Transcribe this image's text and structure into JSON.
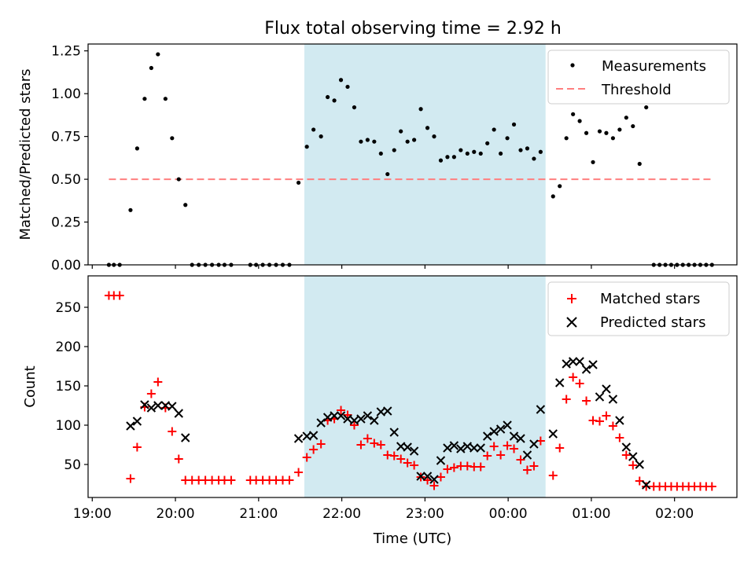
{
  "title": "Flux total observing time = 2.92 h",
  "colors": {
    "shade": "#add8e6",
    "measurement": "#000000",
    "threshold": "#ff7f7f",
    "matched": "#ff0000",
    "predicted": "#000000"
  },
  "chart_data": [
    {
      "type": "scatter",
      "panel": "top",
      "ylabel": "Matched/Predicted stars",
      "ylim": [
        0,
        1.29
      ],
      "yticks": [
        0.0,
        0.25,
        0.5,
        0.75,
        1.0,
        1.25
      ],
      "ytick_labels": [
        "0.00",
        "0.25",
        "0.50",
        "0.75",
        "1.00",
        "1.25"
      ],
      "xlim": [
        18.95,
        26.75
      ],
      "shaded_span": [
        21.55,
        24.45
      ],
      "legend": {
        "position": "top-right",
        "entries": [
          "Measurements",
          "Threshold"
        ]
      },
      "series": [
        {
          "name": "Measurements",
          "marker": "dot",
          "points": [
            [
              19.2,
              0
            ],
            [
              19.26,
              0
            ],
            [
              19.33,
              0
            ],
            [
              19.46,
              0.32
            ],
            [
              19.54,
              0.68
            ],
            [
              19.63,
              0.97
            ],
            [
              19.71,
              1.15
            ],
            [
              19.79,
              1.23
            ],
            [
              19.88,
              0.97
            ],
            [
              19.96,
              0.74
            ],
            [
              20.04,
              0.5
            ],
            [
              20.12,
              0.35
            ],
            [
              20.2,
              0
            ],
            [
              20.28,
              0
            ],
            [
              20.36,
              0
            ],
            [
              20.44,
              0
            ],
            [
              20.52,
              0
            ],
            [
              20.59,
              0
            ],
            [
              20.67,
              0
            ],
            [
              20.9,
              0
            ],
            [
              20.97,
              0
            ],
            [
              21.05,
              0
            ],
            [
              21.13,
              0
            ],
            [
              21.21,
              0
            ],
            [
              21.29,
              0
            ],
            [
              21.37,
              0
            ],
            [
              21.48,
              0.48
            ],
            [
              21.58,
              0.69
            ],
            [
              21.66,
              0.79
            ],
            [
              21.75,
              0.75
            ],
            [
              21.83,
              0.98
            ],
            [
              21.91,
              0.96
            ],
            [
              21.99,
              1.08
            ],
            [
              22.07,
              1.04
            ],
            [
              22.15,
              0.92
            ],
            [
              22.23,
              0.72
            ],
            [
              22.31,
              0.73
            ],
            [
              22.39,
              0.72
            ],
            [
              22.47,
              0.65
            ],
            [
              22.55,
              0.53
            ],
            [
              22.63,
              0.67
            ],
            [
              22.71,
              0.78
            ],
            [
              22.79,
              0.72
            ],
            [
              22.87,
              0.73
            ],
            [
              22.95,
              0.91
            ],
            [
              23.03,
              0.8
            ],
            [
              23.11,
              0.75
            ],
            [
              23.19,
              0.61
            ],
            [
              23.27,
              0.63
            ],
            [
              23.35,
              0.63
            ],
            [
              23.43,
              0.67
            ],
            [
              23.51,
              0.65
            ],
            [
              23.59,
              0.66
            ],
            [
              23.67,
              0.65
            ],
            [
              23.75,
              0.71
            ],
            [
              23.83,
              0.79
            ],
            [
              23.91,
              0.65
            ],
            [
              23.99,
              0.74
            ],
            [
              24.07,
              0.82
            ],
            [
              24.15,
              0.67
            ],
            [
              24.23,
              0.68
            ],
            [
              24.31,
              0.62
            ],
            [
              24.39,
              0.66
            ],
            [
              24.54,
              0.4
            ],
            [
              24.62,
              0.46
            ],
            [
              24.7,
              0.74
            ],
            [
              24.78,
              0.88
            ],
            [
              24.86,
              0.84
            ],
            [
              24.94,
              0.77
            ],
            [
              25.02,
              0.6
            ],
            [
              25.1,
              0.78
            ],
            [
              25.18,
              0.77
            ],
            [
              25.26,
              0.74
            ],
            [
              25.34,
              0.79
            ],
            [
              25.42,
              0.86
            ],
            [
              25.5,
              0.81
            ],
            [
              25.58,
              0.59
            ],
            [
              25.66,
              0.92
            ],
            [
              25.75,
              0
            ],
            [
              25.82,
              0
            ],
            [
              25.89,
              0
            ],
            [
              25.96,
              0
            ],
            [
              26.03,
              0
            ],
            [
              26.1,
              0
            ],
            [
              26.17,
              0
            ],
            [
              26.24,
              0
            ],
            [
              26.31,
              0
            ],
            [
              26.38,
              0
            ],
            [
              26.45,
              0
            ]
          ]
        },
        {
          "name": "Threshold",
          "marker": "dashed-line",
          "points": [
            [
              19.2,
              0.5
            ],
            [
              26.45,
              0.5
            ]
          ]
        }
      ]
    },
    {
      "type": "scatter",
      "panel": "bottom",
      "xlabel": "Time (UTC)",
      "ylabel": "Count",
      "ylim": [
        8,
        290
      ],
      "yticks": [
        50,
        100,
        150,
        200,
        250
      ],
      "xlim": [
        18.95,
        26.75
      ],
      "xticks": [
        19,
        20,
        21,
        22,
        23,
        24,
        25,
        26
      ],
      "xtick_labels": [
        "19:00",
        "20:00",
        "21:00",
        "22:00",
        "23:00",
        "00:00",
        "01:00",
        "02:00"
      ],
      "shaded_span": [
        21.55,
        24.45
      ],
      "legend": {
        "position": "top-right",
        "entries": [
          "Matched stars",
          "Predicted stars"
        ]
      },
      "series": [
        {
          "name": "Matched stars",
          "marker": "plus",
          "points": [
            [
              19.2,
              265
            ],
            [
              19.26,
              265
            ],
            [
              19.33,
              265
            ],
            [
              19.46,
              32
            ],
            [
              19.54,
              72
            ],
            [
              19.63,
              123
            ],
            [
              19.71,
              140
            ],
            [
              19.79,
              155
            ],
            [
              19.88,
              122
            ],
            [
              19.96,
              92
            ],
            [
              20.04,
              57
            ],
            [
              20.12,
              30
            ],
            [
              20.2,
              30
            ],
            [
              20.28,
              30
            ],
            [
              20.36,
              30
            ],
            [
              20.44,
              30
            ],
            [
              20.52,
              30
            ],
            [
              20.59,
              30
            ],
            [
              20.67,
              30
            ],
            [
              20.9,
              30
            ],
            [
              20.97,
              30
            ],
            [
              21.05,
              30
            ],
            [
              21.13,
              30
            ],
            [
              21.21,
              30
            ],
            [
              21.29,
              30
            ],
            [
              21.37,
              30
            ],
            [
              21.48,
              40
            ],
            [
              21.58,
              59
            ],
            [
              21.66,
              69
            ],
            [
              21.75,
              76
            ],
            [
              21.83,
              106
            ],
            [
              21.91,
              108
            ],
            [
              21.99,
              119
            ],
            [
              22.07,
              113
            ],
            [
              22.15,
              100
            ],
            [
              22.23,
              75
            ],
            [
              22.31,
              83
            ],
            [
              22.39,
              77
            ],
            [
              22.47,
              75
            ],
            [
              22.55,
              62
            ],
            [
              22.63,
              61
            ],
            [
              22.71,
              57
            ],
            [
              22.79,
              52
            ],
            [
              22.87,
              49
            ],
            [
              22.95,
              34
            ],
            [
              23.03,
              30
            ],
            [
              23.11,
              23
            ],
            [
              23.19,
              34
            ],
            [
              23.27,
              44
            ],
            [
              23.35,
              46
            ],
            [
              23.43,
              48
            ],
            [
              23.51,
              48
            ],
            [
              23.59,
              47
            ],
            [
              23.67,
              47
            ],
            [
              23.75,
              61
            ],
            [
              23.83,
              73
            ],
            [
              23.91,
              62
            ],
            [
              23.99,
              74
            ],
            [
              24.07,
              70
            ],
            [
              24.15,
              56
            ],
            [
              24.23,
              43
            ],
            [
              24.31,
              48
            ],
            [
              24.39,
              80
            ],
            [
              24.54,
              36
            ],
            [
              24.62,
              71
            ],
            [
              24.7,
              133
            ],
            [
              24.78,
              161
            ],
            [
              24.86,
              153
            ],
            [
              24.94,
              131
            ],
            [
              25.02,
              106
            ],
            [
              25.1,
              105
            ],
            [
              25.18,
              112
            ],
            [
              25.26,
              99
            ],
            [
              25.34,
              84
            ],
            [
              25.42,
              62
            ],
            [
              25.5,
              49
            ],
            [
              25.58,
              29
            ],
            [
              25.66,
              22
            ],
            [
              25.75,
              22
            ],
            [
              25.82,
              22
            ],
            [
              25.89,
              22
            ],
            [
              25.96,
              22
            ],
            [
              26.03,
              22
            ],
            [
              26.1,
              22
            ],
            [
              26.17,
              22
            ],
            [
              26.24,
              22
            ],
            [
              26.31,
              22
            ],
            [
              26.38,
              22
            ],
            [
              26.45,
              22
            ]
          ]
        },
        {
          "name": "Predicted stars",
          "marker": "x",
          "points": [
            [
              19.46,
              99
            ],
            [
              19.54,
              105
            ],
            [
              19.63,
              126
            ],
            [
              19.71,
              122
            ],
            [
              19.79,
              125
            ],
            [
              19.88,
              125
            ],
            [
              19.96,
              124
            ],
            [
              20.04,
              115
            ],
            [
              20.12,
              84
            ],
            [
              21.48,
              83
            ],
            [
              21.58,
              86
            ],
            [
              21.66,
              87
            ],
            [
              21.75,
              103
            ],
            [
              21.83,
              110
            ],
            [
              21.91,
              112
            ],
            [
              21.99,
              112
            ],
            [
              22.07,
              108
            ],
            [
              22.15,
              106
            ],
            [
              22.23,
              108
            ],
            [
              22.31,
              112
            ],
            [
              22.39,
              106
            ],
            [
              22.47,
              117
            ],
            [
              22.55,
              118
            ],
            [
              22.63,
              91
            ],
            [
              22.71,
              73
            ],
            [
              22.79,
              72
            ],
            [
              22.87,
              67
            ],
            [
              22.95,
              35
            ],
            [
              23.03,
              35
            ],
            [
              23.11,
              31
            ],
            [
              23.19,
              55
            ],
            [
              23.27,
              71
            ],
            [
              23.35,
              74
            ],
            [
              23.43,
              70
            ],
            [
              23.51,
              73
            ],
            [
              23.59,
              71
            ],
            [
              23.67,
              71
            ],
            [
              23.75,
              86
            ],
            [
              23.83,
              92
            ],
            [
              23.91,
              95
            ],
            [
              23.99,
              100
            ],
            [
              24.07,
              86
            ],
            [
              24.15,
              83
            ],
            [
              24.23,
              62
            ],
            [
              24.31,
              76
            ],
            [
              24.39,
              120
            ],
            [
              24.54,
              89
            ],
            [
              24.62,
              154
            ],
            [
              24.7,
              178
            ],
            [
              24.78,
              181
            ],
            [
              24.86,
              181
            ],
            [
              24.94,
              171
            ],
            [
              25.02,
              177
            ],
            [
              25.1,
              136
            ],
            [
              25.18,
              146
            ],
            [
              25.26,
              133
            ],
            [
              25.34,
              106
            ],
            [
              25.42,
              72
            ],
            [
              25.5,
              60
            ],
            [
              25.58,
              50
            ],
            [
              25.66,
              24
            ]
          ]
        }
      ]
    }
  ]
}
